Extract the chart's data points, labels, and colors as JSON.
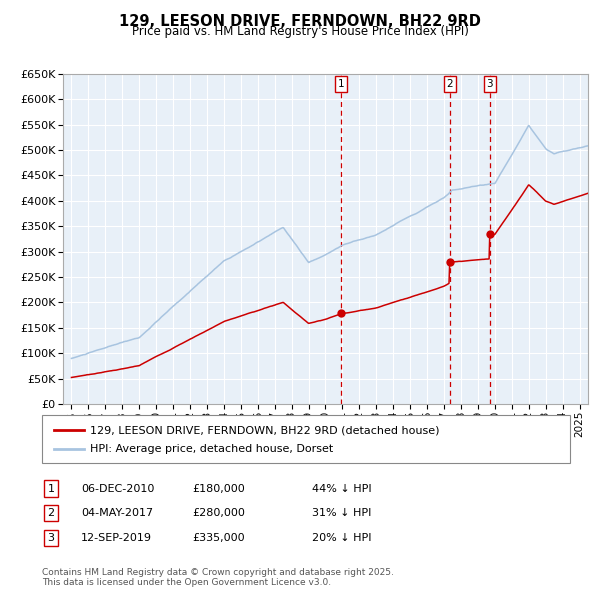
{
  "title": "129, LEESON DRIVE, FERNDOWN, BH22 9RD",
  "subtitle": "Price paid vs. HM Land Registry's House Price Index (HPI)",
  "hpi_color": "#a8c4e0",
  "price_color": "#cc0000",
  "bg_color": "#e8f0f8",
  "grid_color": "#ffffff",
  "vline_color": "#cc0000",
  "ylim": [
    0,
    650000
  ],
  "yticks": [
    0,
    50000,
    100000,
    150000,
    200000,
    250000,
    300000,
    350000,
    400000,
    450000,
    500000,
    550000,
    600000,
    650000
  ],
  "transactions": [
    {
      "date_x": 2010.92,
      "price": 180000,
      "label": "1"
    },
    {
      "date_x": 2017.34,
      "price": 280000,
      "label": "2"
    },
    {
      "date_x": 2019.7,
      "price": 335000,
      "label": "3"
    }
  ],
  "vline_dates": [
    2010.92,
    2017.34,
    2019.7
  ],
  "sale_labels": [
    {
      "label": "1",
      "date": "06-DEC-2010",
      "price": "£180,000",
      "pct": "44% ↓ HPI"
    },
    {
      "label": "2",
      "date": "04-MAY-2017",
      "price": "£280,000",
      "pct": "31% ↓ HPI"
    },
    {
      "label": "3",
      "date": "12-SEP-2019",
      "price": "£335,000",
      "pct": "20% ↓ HPI"
    }
  ],
  "legend_line1": "129, LEESON DRIVE, FERNDOWN, BH22 9RD (detached house)",
  "legend_line2": "HPI: Average price, detached house, Dorset",
  "footnote": "Contains HM Land Registry data © Crown copyright and database right 2025.\nThis data is licensed under the Open Government Licence v3.0.",
  "xlim": [
    1994.5,
    2025.5
  ]
}
